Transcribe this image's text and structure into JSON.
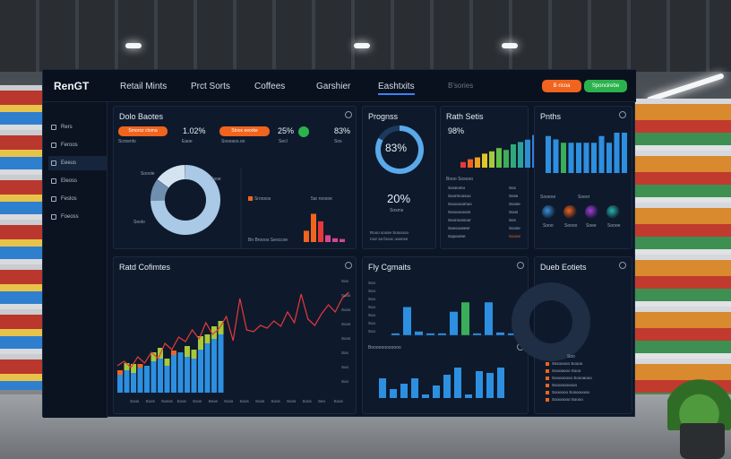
{
  "app": {
    "logo": "RenGT",
    "nav": [
      "Retail Mints",
      "Prct Sorts",
      "Coffees",
      "Garshier",
      "Eashtxits",
      "B'sories"
    ],
    "buttons": {
      "orange": "B·ricoa",
      "green": "Sponcirebe"
    }
  },
  "sidebar": {
    "items": [
      "Rers",
      "Feroos",
      "Eeeus",
      "Eleoss",
      "Feslos",
      "Foeoss"
    ],
    "active_index": 2
  },
  "panel_donut": {
    "title": "Dolo Baotes",
    "pill1": "Smoroz ctoma",
    "pill2": "Stoox eeorke",
    "val1": "1.02%",
    "val2": "25%",
    "val3": "83%",
    "sub1": "Scroenlo",
    "sub2": "Eaoe",
    "sub3": "Sosnaos.oo",
    "sub4": "Secl",
    "sub5": "Sos",
    "legend": [
      "Sooole",
      "Sooe",
      "Seolo"
    ],
    "mini_labels": [
      "85 Sroosos",
      "5ar roosoe"
    ],
    "mini_bar_footer": "Bn Brooos Seoccoe",
    "mini_bar_values": [
      30,
      75,
      55,
      18,
      10,
      8
    ],
    "donut_share": [
      0.75,
      0.1,
      0.15
    ]
  },
  "panel_progress": {
    "title": "Prognss",
    "ring_value": "83%",
    "ring_fraction": 0.83,
    "value2": "20%",
    "value2_sub": "Sosms",
    "footer": [
      "Rooo soose Sosoooo",
      "roor sa foooc ooenxe"
    ]
  },
  "panel_rath": {
    "title": "Rath Setis",
    "value": "98%",
    "bars": [
      12,
      18,
      22,
      30,
      35,
      42,
      38,
      50,
      55,
      60,
      70
    ],
    "bar_colors": [
      "#e8393a",
      "#f0641e",
      "#f0a21e",
      "#e2c52b",
      "#a7c93a",
      "#5fbf4c",
      "#3cae5a",
      "#30a97a",
      "#2aa39d",
      "#2d8fcf",
      "#3a7be0"
    ],
    "header": "Booo Sosooo",
    "rows": [
      {
        "label": "Soseomo",
        "value": "Sos"
      },
      {
        "label": "Soormoosoo",
        "value": "Sose"
      },
      {
        "label": "Soooooomoo",
        "value": "Soose"
      },
      {
        "label": "Soooooooos",
        "value": "Soos"
      },
      {
        "label": "Soorooosoor",
        "value": "Sos"
      },
      {
        "label": "Soeoooeeer",
        "value": "Soose"
      },
      {
        "label": "Sopooree",
        "value": "Soooe"
      }
    ]
  },
  "panel_pnts": {
    "title": "Pnths",
    "bars": [
      55,
      50,
      45,
      45,
      45,
      45,
      45,
      55,
      45,
      60,
      60
    ],
    "bar_colors": [
      "#2d8fe0",
      "#2d8fe0",
      "#3aae5a",
      "#2d8fe0",
      "#2d8fe0",
      "#2d8fe0",
      "#2d8fe0",
      "#2d8fe0",
      "#2d8fe0",
      "#2d8fe0",
      "#2d8fe0"
    ],
    "labels": [
      "Sooeoe",
      "Soeor"
    ],
    "orb_labels": [
      "Sooo",
      "Soooo",
      "Soee",
      "Soooe"
    ],
    "orb_colors": [
      "#3b8fd8",
      "#f0641e",
      "#a23ed8",
      "#2ab3b0"
    ]
  },
  "panel_rath_cofimtes": {
    "title": "Ratd Cofimtes",
    "line": [
      30,
      35,
      28,
      40,
      33,
      45,
      38,
      55,
      48,
      62,
      57,
      70,
      60,
      78,
      65,
      72,
      85,
      58,
      105,
      70,
      68,
      75,
      72,
      80,
      74,
      90,
      78,
      110,
      82,
      75,
      88,
      98,
      90,
      105,
      112
    ],
    "stack_blue": [
      20,
      25,
      22,
      28,
      30,
      35,
      38,
      30,
      42,
      45,
      40,
      38,
      48,
      55,
      60,
      65
    ],
    "stack_green": [
      0,
      8,
      10,
      0,
      0,
      10,
      12,
      8,
      0,
      0,
      12,
      10,
      15,
      10,
      14,
      15
    ],
    "stack_orange": [
      5,
      0,
      0,
      4,
      0,
      0,
      0,
      0,
      5,
      0,
      0,
      0,
      0,
      0,
      0,
      0
    ],
    "x_labels": [
      "Soos",
      "Soos",
      "Soeos",
      "Soos",
      "Soos",
      "Seoe",
      "Soos",
      "Soos",
      "Soos",
      "Soos",
      "Soos",
      "Soos",
      "Seo",
      "Soos"
    ],
    "y_labels": [
      "Sos",
      "Soos",
      "Soos",
      "Soos",
      "Soos",
      "Sos",
      "Soo",
      "Soo"
    ]
  },
  "panel_fly": {
    "title": "Fly Cgmaits",
    "top_bars": [
      2,
      30,
      4,
      2,
      2,
      25,
      35,
      2,
      35,
      3,
      2
    ],
    "top_colors": [
      "#2d8fe0",
      "#2d8fe0",
      "#2d8fe0",
      "#2d8fe0",
      "#2d8fe0",
      "#2d8fe0",
      "#3aae5a",
      "#2d8fe0",
      "#2d8fe0",
      "#2d8fe0",
      "#2d8fe0"
    ],
    "subheader": "Boooooooooooo",
    "bottom_bars": [
      22,
      10,
      16,
      22,
      4,
      14,
      26,
      34,
      4,
      30,
      28,
      34
    ],
    "y_labels": [
      "Soo",
      "Soo",
      "Soo",
      "Soo",
      "Soo",
      "Soo",
      "Soo"
    ]
  },
  "panel_ring": {
    "title": "Dueb Eotiets",
    "legend_header": "Soo",
    "legend": [
      "Sssooooo Soooo",
      "Soooaooo Sooo",
      "Soooooooo Soooaooo",
      "Soooooooooo",
      "Soooooo Sosoooooo",
      "Sooooooo Soooo"
    ]
  }
}
